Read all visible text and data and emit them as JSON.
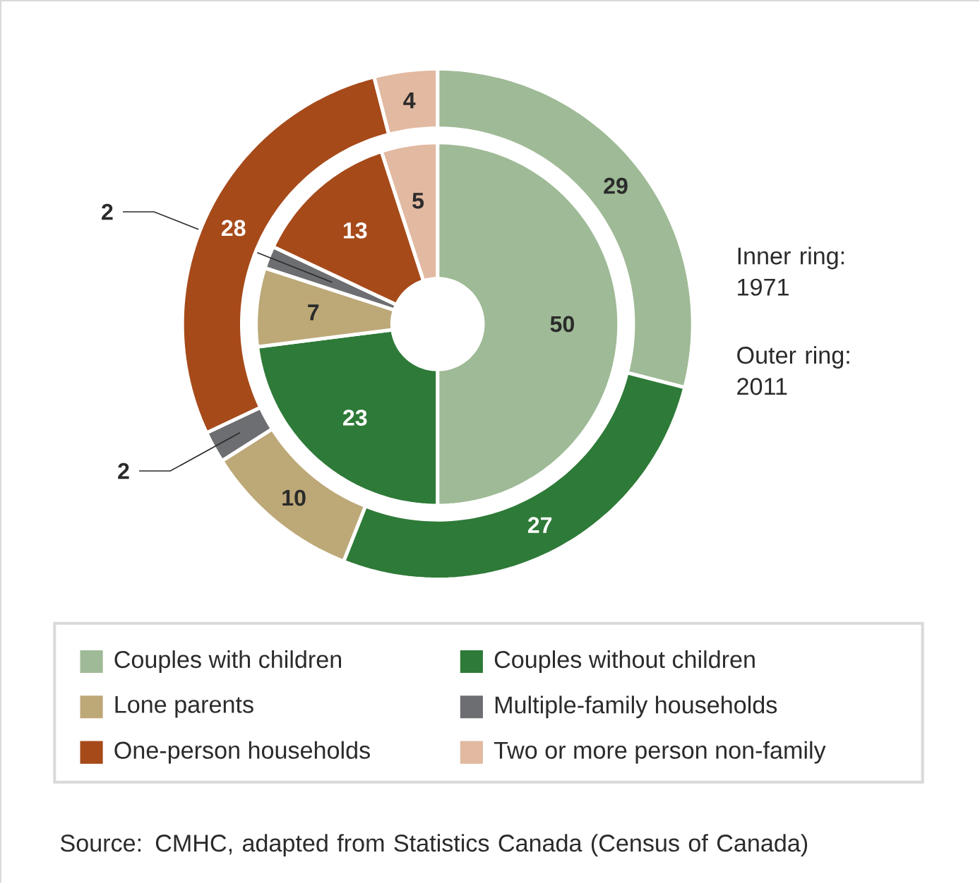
{
  "chart_data": {
    "type": "donut",
    "categories": [
      "Couples with children",
      "Couples without children",
      "Lone parents",
      "Multiple-family households",
      "One-person households",
      "Two or more person non-family"
    ],
    "colors": [
      "#9fba96",
      "#2e7a38",
      "#bda878",
      "#6d6e71",
      "#a64a1a",
      "#e2b9a1"
    ],
    "series": [
      {
        "values": [
          50,
          23,
          7,
          2,
          13,
          5
        ]
      },
      {
        "values": [
          29,
          27,
          10,
          2,
          28,
          4
        ]
      }
    ],
    "data_labels": true,
    "legend": "bottom",
    "annotations": [
      "Inner ring: 1971",
      "Outer ring: 2011",
      "Source: CMHC, adapted from Statistics Canada (Census of Canada)"
    ]
  }
}
